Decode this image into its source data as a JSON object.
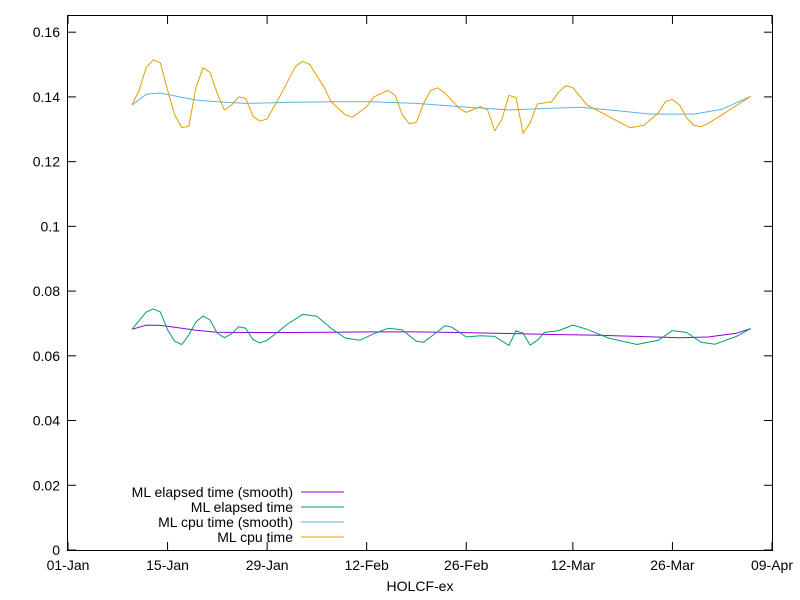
{
  "chart_data": {
    "type": "line",
    "title": "",
    "xlabel": "HOLCF-ex",
    "ylabel": "",
    "x_ticks": [
      "01-Jan",
      "15-Jan",
      "29-Jan",
      "12-Feb",
      "26-Feb",
      "12-Mar",
      "26-Mar",
      "09-Apr"
    ],
    "y_ticks": [
      "0",
      "0.02",
      "0.04",
      "0.06",
      "0.08",
      "0.1",
      "0.12",
      "0.14",
      "0.16"
    ],
    "xlim": [
      "01-Jan",
      "09-Apr"
    ],
    "ylim": [
      0,
      0.165
    ],
    "grid": false,
    "legend_position": "bottom-left",
    "series": [
      {
        "name": "ML elapsed time (smooth)",
        "color": "#9400d3",
        "points": [
          [
            "10-Jan",
            0.0682
          ],
          [
            "12-Jan",
            0.0695
          ],
          [
            "14-Jan",
            0.0694
          ],
          [
            "16-Jan",
            0.0688
          ],
          [
            "19-Jan",
            0.0679
          ],
          [
            "22-Jan",
            0.0673
          ],
          [
            "26-Jan",
            0.0672
          ],
          [
            "01-Feb",
            0.0672
          ],
          [
            "07-Feb",
            0.0673
          ],
          [
            "13-Feb",
            0.0674
          ],
          [
            "19-Feb",
            0.0674
          ],
          [
            "25-Feb",
            0.0672
          ],
          [
            "03-Mar",
            0.0669
          ],
          [
            "09-Mar",
            0.0666
          ],
          [
            "15-Mar",
            0.0664
          ],
          [
            "21-Mar",
            0.066
          ],
          [
            "27-Mar",
            0.0656
          ],
          [
            "31-Mar",
            0.0658
          ],
          [
            "04-Apr",
            0.067
          ],
          [
            "06-Apr",
            0.0684
          ]
        ]
      },
      {
        "name": "ML elapsed time",
        "color": "#009e73",
        "points": [
          [
            "10-Jan",
            0.0682
          ],
          [
            "12-Jan",
            0.0735
          ],
          [
            "13-Jan",
            0.0745
          ],
          [
            "14-Jan",
            0.0735
          ],
          [
            "15-Jan",
            0.068
          ],
          [
            "16-Jan",
            0.0645
          ],
          [
            "17-Jan",
            0.0635
          ],
          [
            "18-Jan",
            0.0665
          ],
          [
            "19-Jan",
            0.0705
          ],
          [
            "20-Jan",
            0.0723
          ],
          [
            "21-Jan",
            0.071
          ],
          [
            "22-Jan",
            0.067
          ],
          [
            "23-Jan",
            0.0656
          ],
          [
            "24-Jan",
            0.0668
          ],
          [
            "25-Jan",
            0.069
          ],
          [
            "26-Jan",
            0.0685
          ],
          [
            "27-Jan",
            0.065
          ],
          [
            "28-Jan",
            0.064
          ],
          [
            "29-Jan",
            0.0648
          ],
          [
            "01-Feb",
            0.07
          ],
          [
            "03-Feb",
            0.0728
          ],
          [
            "05-Feb",
            0.0722
          ],
          [
            "07-Feb",
            0.0685
          ],
          [
            "09-Feb",
            0.0655
          ],
          [
            "11-Feb",
            0.0648
          ],
          [
            "13-Feb",
            0.0668
          ],
          [
            "15-Feb",
            0.0685
          ],
          [
            "17-Feb",
            0.068
          ],
          [
            "19-Feb",
            0.0645
          ],
          [
            "20-Feb",
            0.0642
          ],
          [
            "22-Feb",
            0.0675
          ],
          [
            "23-Feb",
            0.0693
          ],
          [
            "24-Feb",
            0.0688
          ],
          [
            "26-Feb",
            0.0658
          ],
          [
            "28-Feb",
            0.0662
          ],
          [
            "01-Mar",
            0.066
          ],
          [
            "03-Mar",
            0.0632
          ],
          [
            "04-Mar",
            0.0677
          ],
          [
            "05-Mar",
            0.067
          ],
          [
            "06-Mar",
            0.0633
          ],
          [
            "07-Mar",
            0.0648
          ],
          [
            "08-Mar",
            0.0672
          ],
          [
            "10-Mar",
            0.0678
          ],
          [
            "12-Mar",
            0.0695
          ],
          [
            "14-Mar",
            0.0682
          ],
          [
            "17-Mar",
            0.0655
          ],
          [
            "21-Mar",
            0.0635
          ],
          [
            "24-Mar",
            0.0648
          ],
          [
            "26-Mar",
            0.0678
          ],
          [
            "28-Mar",
            0.0672
          ],
          [
            "30-Mar",
            0.0642
          ],
          [
            "01-Apr",
            0.0636
          ],
          [
            "04-Apr",
            0.066
          ],
          [
            "06-Apr",
            0.0684
          ]
        ]
      },
      {
        "name": "ML cpu time (smooth)",
        "color": "#56b4e9",
        "points": [
          [
            "10-Jan",
            0.1375
          ],
          [
            "12-Jan",
            0.1408
          ],
          [
            "14-Jan",
            0.1412
          ],
          [
            "16-Jan",
            0.1403
          ],
          [
            "19-Jan",
            0.139
          ],
          [
            "22-Jan",
            0.1385
          ],
          [
            "26-Jan",
            0.138
          ],
          [
            "01-Feb",
            0.1383
          ],
          [
            "07-Feb",
            0.1385
          ],
          [
            "13-Feb",
            0.1385
          ],
          [
            "19-Feb",
            0.138
          ],
          [
            "25-Feb",
            0.137
          ],
          [
            "03-Mar",
            0.136
          ],
          [
            "09-Mar",
            0.1365
          ],
          [
            "13-Mar",
            0.1368
          ],
          [
            "18-Mar",
            0.1358
          ],
          [
            "23-Mar",
            0.1347
          ],
          [
            "29-Mar",
            0.1347
          ],
          [
            "02-Apr",
            0.1362
          ],
          [
            "06-Apr",
            0.1402
          ]
        ]
      },
      {
        "name": "ML cpu time",
        "color": "#e69f00",
        "points": [
          [
            "10-Jan",
            0.1375
          ],
          [
            "11-Jan",
            0.142
          ],
          [
            "12-Jan",
            0.149
          ],
          [
            "13-Jan",
            0.1515
          ],
          [
            "14-Jan",
            0.1505
          ],
          [
            "15-Jan",
            0.142
          ],
          [
            "16-Jan",
            0.1345
          ],
          [
            "17-Jan",
            0.1305
          ],
          [
            "18-Jan",
            0.131
          ],
          [
            "19-Jan",
            0.143
          ],
          [
            "20-Jan",
            0.149
          ],
          [
            "21-Jan",
            0.1475
          ],
          [
            "22-Jan",
            0.141
          ],
          [
            "23-Jan",
            0.136
          ],
          [
            "24-Jan",
            0.1375
          ],
          [
            "25-Jan",
            0.14
          ],
          [
            "26-Jan",
            0.1395
          ],
          [
            "27-Jan",
            0.134
          ],
          [
            "28-Jan",
            0.1325
          ],
          [
            "29-Jan",
            0.1332
          ],
          [
            "31-Jan",
            0.141
          ],
          [
            "02-Feb",
            0.1495
          ],
          [
            "03-Feb",
            0.151
          ],
          [
            "04-Feb",
            0.15
          ],
          [
            "06-Feb",
            0.143
          ],
          [
            "07-Feb",
            0.1385
          ],
          [
            "09-Feb",
            0.1345
          ],
          [
            "10-Feb",
            0.1337
          ],
          [
            "12-Feb",
            0.137
          ],
          [
            "13-Feb",
            0.14
          ],
          [
            "15-Feb",
            0.142
          ],
          [
            "16-Feb",
            0.1405
          ],
          [
            "17-Feb",
            0.1345
          ],
          [
            "18-Feb",
            0.1317
          ],
          [
            "19-Feb",
            0.1322
          ],
          [
            "20-Feb",
            0.138
          ],
          [
            "21-Feb",
            0.142
          ],
          [
            "22-Feb",
            0.1428
          ],
          [
            "23-Feb",
            0.1412
          ],
          [
            "25-Feb",
            0.1365
          ],
          [
            "26-Feb",
            0.1352
          ],
          [
            "28-Feb",
            0.137
          ],
          [
            "29-Feb",
            0.136
          ],
          [
            "01-Mar",
            0.1295
          ],
          [
            "02-Mar",
            0.133
          ],
          [
            "03-Mar",
            0.1405
          ],
          [
            "04-Mar",
            0.1398
          ],
          [
            "05-Mar",
            0.1288
          ],
          [
            "06-Mar",
            0.132
          ],
          [
            "07-Mar",
            0.1378
          ],
          [
            "09-Mar",
            0.1385
          ],
          [
            "10-Mar",
            0.1415
          ],
          [
            "11-Mar",
            0.1435
          ],
          [
            "12-Mar",
            0.1428
          ],
          [
            "14-Mar",
            0.1375
          ],
          [
            "17-Mar",
            0.134
          ],
          [
            "20-Mar",
            0.1305
          ],
          [
            "22-Mar",
            0.1312
          ],
          [
            "24-Mar",
            0.135
          ],
          [
            "25-Mar",
            0.1385
          ],
          [
            "26-Mar",
            0.1392
          ],
          [
            "27-Mar",
            0.1375
          ],
          [
            "28-Mar",
            0.1335
          ],
          [
            "29-Mar",
            0.1312
          ],
          [
            "30-Mar",
            0.1308
          ],
          [
            "31-Mar",
            0.1318
          ],
          [
            "02-Apr",
            0.1345
          ],
          [
            "06-Apr",
            0.1402
          ]
        ]
      }
    ]
  }
}
